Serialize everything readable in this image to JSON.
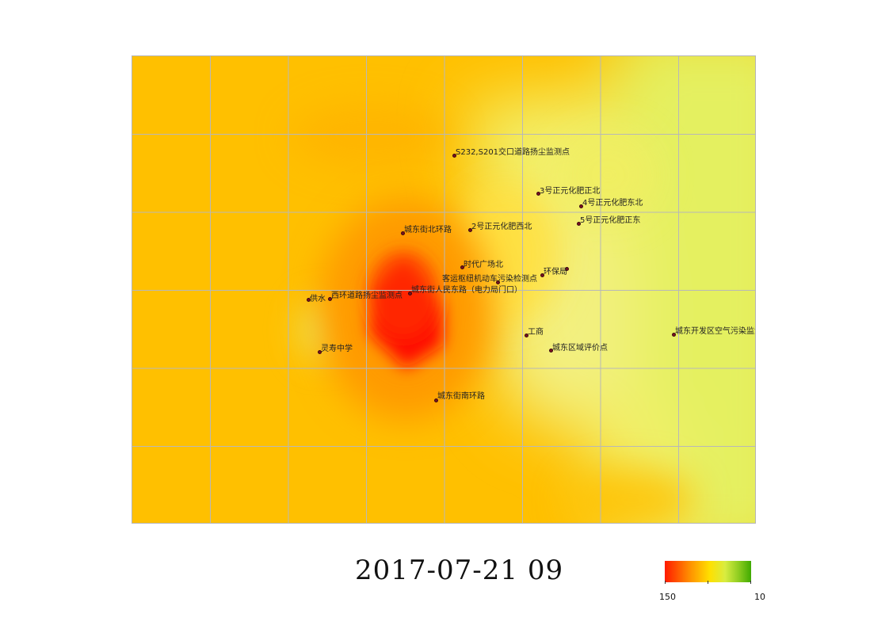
{
  "timestamp": "2017-07-21 09",
  "legend": {
    "max_label": "150",
    "min_label": "10",
    "colors": [
      "#ff1a00",
      "#ff8c00",
      "#ffe000",
      "#d8ec40",
      "#3faa00"
    ]
  },
  "stations": [
    {
      "id": "s232",
      "label": "S232,S201交口道路扬尘监测点"
    },
    {
      "id": "h3n",
      "label": "3号正元化肥正北"
    },
    {
      "id": "h4ne",
      "label": "4号正元化肥东北"
    },
    {
      "id": "h5e",
      "label": "5号正元化肥正东"
    },
    {
      "id": "h2nw",
      "label": "2号正元化肥西北"
    },
    {
      "id": "cdbh",
      "label": "城东街北环路"
    },
    {
      "id": "sdgc",
      "label": "时代广场北"
    },
    {
      "id": "hbj",
      "label": "环保局"
    },
    {
      "id": "kyss",
      "label": "客运枢纽机动车污染检测点"
    },
    {
      "id": "cdrm",
      "label": "城东街人民东路（电力局门口）"
    },
    {
      "id": "gs",
      "label": "供水"
    },
    {
      "id": "xhdl",
      "label": "西环道路扬尘监测点"
    },
    {
      "id": "gsh",
      "label": "工商"
    },
    {
      "id": "cdkf",
      "label": "城东开发区空气污染监测点"
    },
    {
      "id": "lszx",
      "label": "灵寿中学"
    },
    {
      "id": "cdqy",
      "label": "城东区域评价点"
    },
    {
      "id": "cdnh",
      "label": "城东街南环路"
    }
  ]
}
